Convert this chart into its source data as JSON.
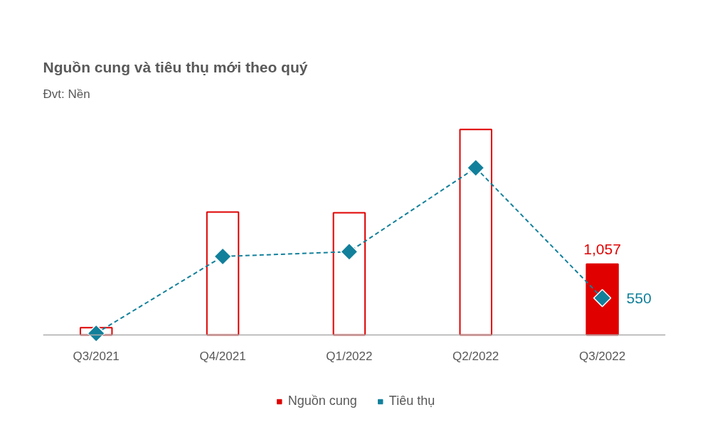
{
  "chart_data": {
    "type": "bar",
    "title": "Nguồn cung và tiêu thụ mới theo quý",
    "subtitle": "Đvt: Nền",
    "categories": [
      "Q3/2021",
      "Q4/2021",
      "Q1/2022",
      "Q2/2022",
      "Q3/2022"
    ],
    "series": [
      {
        "name": "Nguồn cung",
        "color": "#e00000",
        "colors": [
          "#ffffff",
          "#ffffff",
          "#ffffff",
          "#ffffff",
          "#e00000"
        ],
        "values": [
          110,
          1830,
          1820,
          3060,
          1057
        ],
        "value_labels": [
          null,
          null,
          null,
          null,
          "1,057"
        ]
      },
      {
        "name": "Tiêu thụ",
        "type": "line",
        "color": "#12809b",
        "marker": "diamond",
        "line_style": "dashed",
        "values": [
          25,
          1170,
          1240,
          2490,
          550
        ],
        "value_labels": [
          null,
          null,
          null,
          null,
          "550"
        ]
      }
    ],
    "legend": "bottom",
    "tick_labels": "x"
  }
}
